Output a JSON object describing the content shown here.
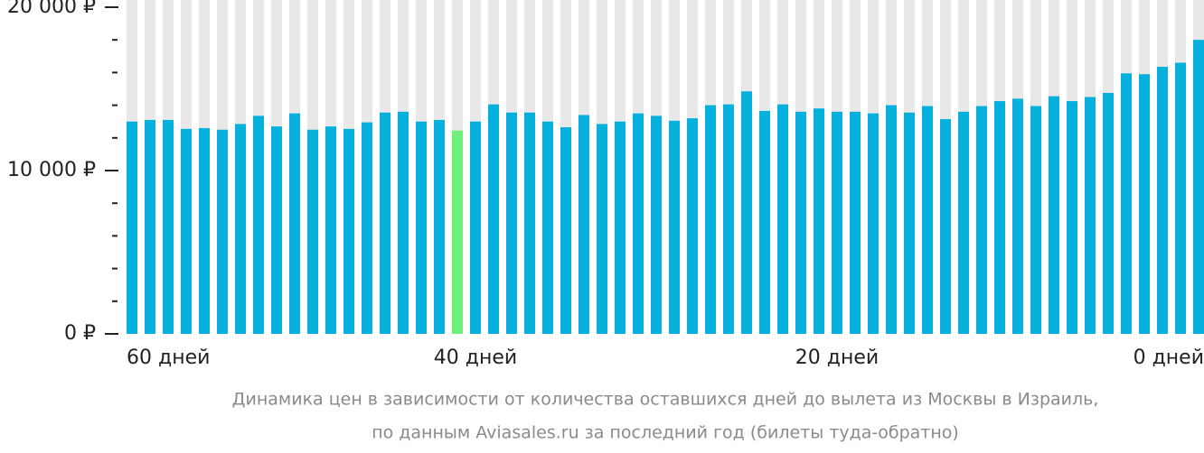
{
  "chart_data": {
    "type": "bar",
    "caption": [
      "Динамика цен в зависимости от количества оставшихся дней до вылета из Москвы в Израиль,",
      "по данным Aviasales.ru за последний год (билеты туда-обратно)"
    ],
    "categories": [
      "60 дней",
      null,
      null,
      null,
      null,
      null,
      null,
      null,
      null,
      null,
      null,
      null,
      null,
      null,
      null,
      null,
      null,
      null,
      null,
      "40 дней",
      null,
      null,
      null,
      null,
      null,
      null,
      null,
      null,
      null,
      null,
      null,
      null,
      null,
      null,
      null,
      null,
      null,
      null,
      null,
      "20 дней",
      null,
      null,
      null,
      null,
      null,
      null,
      null,
      null,
      null,
      null,
      null,
      null,
      null,
      null,
      null,
      null,
      null,
      null,
      null,
      "0 дней"
    ],
    "values": [
      13000,
      13100,
      13100,
      12550,
      12600,
      12500,
      12850,
      13350,
      12700,
      13500,
      12500,
      12700,
      12550,
      12950,
      13550,
      13600,
      13000,
      13100,
      12450,
      13000,
      14050,
      13550,
      13550,
      13000,
      12650,
      13400,
      12850,
      13000,
      13500,
      13350,
      13050,
      13200,
      14000,
      14050,
      14850,
      13650,
      14050,
      13600,
      13800,
      13600,
      13600,
      13500,
      14000,
      13550,
      13950,
      13150,
      13600,
      13950,
      14250,
      14400,
      13950,
      14550,
      14250,
      14500,
      14750,
      15950,
      15900,
      16350,
      16600,
      18000
    ],
    "color": "#05b0dc",
    "highlight_index": 18,
    "highlight_color": "#6ef07a",
    "background_color": "#e8e8e8",
    "ylim": [
      0,
      20000
    ],
    "yticks": [
      {
        "value": 0,
        "label": "0 ₽"
      },
      {
        "value": 10000,
        "label": "10 000 ₽"
      },
      {
        "value": 20000,
        "label": "20 000 ₽"
      }
    ],
    "minor_yticks": [
      2000,
      4000,
      6000,
      8000,
      12000,
      14000,
      16000,
      18000
    ]
  }
}
